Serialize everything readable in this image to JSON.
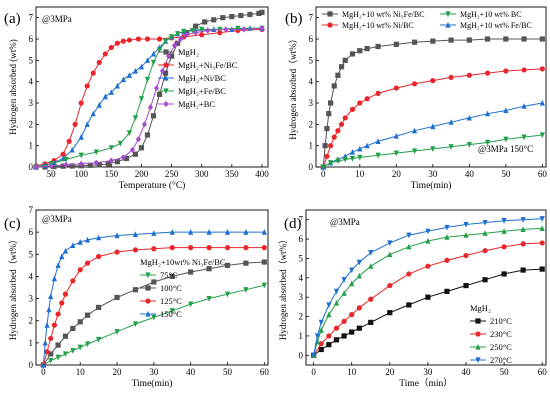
{
  "chart_data": [
    {
      "panel": "(a)",
      "type": "line",
      "annotation": "@3MPa",
      "xlabel": "Temperature (°C)",
      "ylabel": "Hydrogen absorbed (wt%)",
      "xlim": [
        25,
        410
      ],
      "ylim": [
        0,
        7.5
      ],
      "xticks": [
        50,
        100,
        150,
        200,
        250,
        300,
        350,
        400
      ],
      "yticks": [
        0,
        1,
        2,
        3,
        4,
        5,
        6,
        7
      ],
      "legend": {
        "placement": "center-right",
        "entries": [
          {
            "name": "MgH₂",
            "color": "#555555",
            "marker": "square"
          },
          {
            "name": "MgH₂+Ni₃Fe/BC",
            "color": "#e8262b",
            "marker": "circle"
          },
          {
            "name": "MgH₂+Ni/BC",
            "color": "#1f6fd1",
            "marker": "triangle"
          },
          {
            "name": "MgH₂+Fe/BC",
            "color": "#23a04a",
            "marker": "tri-down"
          },
          {
            "name": "MgH₂+BC",
            "color": "#a44ccc",
            "marker": "diamond"
          }
        ]
      },
      "series": [
        {
          "name": "MgH₂",
          "color": "#555555",
          "marker": "square",
          "x": [
            25,
            40,
            55,
            70,
            85,
            100,
            115,
            130,
            145,
            160,
            175,
            190,
            200,
            210,
            220,
            230,
            240,
            250,
            260,
            275,
            290,
            305,
            320,
            335,
            350,
            365,
            380,
            395,
            400
          ],
          "y": [
            0.0,
            0.0,
            0.02,
            0.04,
            0.05,
            0.06,
            0.08,
            0.1,
            0.15,
            0.25,
            0.4,
            0.6,
            0.9,
            1.5,
            2.4,
            3.4,
            4.4,
            5.2,
            5.8,
            6.3,
            6.6,
            6.8,
            6.9,
            7.0,
            7.05,
            7.1,
            7.15,
            7.2,
            7.25
          ]
        },
        {
          "name": "MgH₂+Ni₃Fe/BC",
          "color": "#e8262b",
          "marker": "circle",
          "x": [
            25,
            40,
            55,
            70,
            80,
            90,
            100,
            110,
            120,
            130,
            140,
            150,
            160,
            170,
            180,
            195,
            210,
            230,
            250,
            270,
            300,
            330,
            360,
            400
          ],
          "y": [
            0.05,
            0.15,
            0.3,
            0.6,
            1.2,
            2.0,
            3.0,
            3.8,
            4.4,
            4.9,
            5.3,
            5.6,
            5.8,
            5.9,
            5.95,
            6.0,
            6.0,
            6.0,
            6.05,
            6.1,
            6.2,
            6.3,
            6.4,
            6.45
          ]
        },
        {
          "name": "MgH₂+Ni/BC",
          "color": "#1f6fd1",
          "marker": "triangle",
          "x": [
            25,
            40,
            55,
            70,
            85,
            100,
            110,
            120,
            130,
            140,
            150,
            160,
            170,
            180,
            190,
            200,
            210,
            220,
            230,
            240,
            250,
            260,
            270,
            290,
            320,
            350,
            380,
            400
          ],
          "y": [
            0.0,
            0.1,
            0.2,
            0.4,
            0.8,
            1.4,
            2.0,
            2.5,
            2.9,
            3.3,
            3.5,
            3.8,
            4.1,
            4.3,
            4.5,
            4.7,
            5.0,
            5.3,
            5.6,
            5.9,
            6.1,
            6.25,
            6.35,
            6.4,
            6.45,
            6.45,
            6.5,
            6.5
          ]
        },
        {
          "name": "MgH₂+Fe/BC",
          "color": "#23a04a",
          "marker": "tri-down",
          "x": [
            25,
            50,
            75,
            100,
            125,
            150,
            165,
            180,
            190,
            200,
            210,
            220,
            230,
            240,
            250,
            260,
            270,
            285,
            300,
            330,
            360,
            400
          ],
          "y": [
            0.0,
            0.15,
            0.35,
            0.55,
            0.7,
            0.9,
            1.1,
            1.6,
            2.3,
            3.2,
            4.1,
            4.9,
            5.5,
            5.9,
            6.1,
            6.25,
            6.35,
            6.4,
            6.45,
            6.45,
            6.5,
            6.5
          ]
        },
        {
          "name": "MgH₂+BC",
          "color": "#a44ccc",
          "marker": "diamond",
          "x": [
            25,
            50,
            75,
            100,
            125,
            150,
            170,
            185,
            195,
            205,
            215,
            225,
            235,
            245,
            255,
            265,
            275,
            290,
            310,
            340,
            370,
            400
          ],
          "y": [
            0.0,
            0.05,
            0.1,
            0.15,
            0.2,
            0.3,
            0.45,
            0.8,
            1.3,
            2.0,
            2.8,
            3.7,
            4.5,
            5.2,
            5.7,
            6.0,
            6.2,
            6.3,
            6.4,
            6.45,
            6.45,
            6.5
          ]
        }
      ]
    },
    {
      "panel": "(b)",
      "type": "line",
      "annotation": "@3MPa  150°C",
      "xlabel": "Time(min)",
      "ylabel": "Hydrogen absorbed（wt%）",
      "xlim": [
        -2,
        61
      ],
      "ylim": [
        0,
        7.5
      ],
      "xticks": [
        0,
        10,
        20,
        30,
        40,
        50,
        60
      ],
      "yticks": [
        0,
        1,
        2,
        3,
        4,
        5,
        6,
        7
      ],
      "legend": {
        "placement": "top",
        "entries": [
          {
            "name": "MgH₂+10 wt% Ni₃Fe/BC",
            "color": "#555555",
            "marker": "square"
          },
          {
            "name": "MgH₂+10 wt% BC",
            "color": "#23a04a",
            "marker": "tri-down"
          },
          {
            "name": "MgH₂+10 wt% Ni/BC",
            "color": "#e8262b",
            "marker": "circle"
          },
          {
            "name": "MgH₂+10 wt% Fe/BC",
            "color": "#1f6fd1",
            "marker": "triangle"
          }
        ]
      },
      "series": [
        {
          "name": "MgH₂+10 wt% Ni₃Fe/BC",
          "color": "#555555",
          "marker": "square",
          "x": [
            0,
            0.5,
            1,
            1.5,
            2,
            3,
            4,
            5,
            6,
            8,
            10,
            12,
            15,
            20,
            25,
            30,
            35,
            40,
            45,
            50,
            55,
            60
          ],
          "y": [
            0,
            1.0,
            1.8,
            2.5,
            3.0,
            3.8,
            4.3,
            4.7,
            5.0,
            5.3,
            5.45,
            5.55,
            5.65,
            5.75,
            5.85,
            5.9,
            5.95,
            5.95,
            6.0,
            6.0,
            6.0,
            6.0
          ]
        },
        {
          "name": "MgH₂+10 wt% Ni/BC",
          "color": "#e8262b",
          "marker": "circle",
          "x": [
            0,
            1,
            2,
            3,
            4,
            5,
            6,
            8,
            10,
            12,
            15,
            20,
            25,
            30,
            35,
            40,
            45,
            50,
            55,
            60
          ],
          "y": [
            0,
            0.5,
            1.0,
            1.4,
            1.7,
            2.0,
            2.3,
            2.7,
            3.0,
            3.2,
            3.45,
            3.7,
            3.9,
            4.05,
            4.2,
            4.3,
            4.4,
            4.5,
            4.55,
            4.6
          ]
        },
        {
          "name": "MgH₂+10 wt% Fe/BC",
          "color": "#1f6fd1",
          "marker": "triangle",
          "x": [
            0,
            2,
            4,
            6,
            8,
            10,
            12,
            15,
            20,
            25,
            30,
            35,
            40,
            45,
            50,
            55,
            60
          ],
          "y": [
            0,
            0.2,
            0.35,
            0.5,
            0.7,
            0.85,
            1.0,
            1.2,
            1.45,
            1.7,
            1.9,
            2.1,
            2.3,
            2.5,
            2.65,
            2.85,
            3.0
          ]
        },
        {
          "name": "MgH₂+10 wt% BC",
          "color": "#23a04a",
          "marker": "tri-down",
          "x": [
            0,
            2,
            4,
            6,
            8,
            10,
            15,
            20,
            25,
            30,
            35,
            40,
            45,
            50,
            55,
            60
          ],
          "y": [
            0,
            0.2,
            0.28,
            0.35,
            0.4,
            0.45,
            0.55,
            0.65,
            0.75,
            0.85,
            0.95,
            1.05,
            1.15,
            1.3,
            1.4,
            1.5
          ]
        }
      ]
    },
    {
      "panel": "(c)",
      "type": "line",
      "annotation": "@3MPa",
      "xlabel": "Time(min)",
      "ylabel": "Hydrogen absorbed（wt%）",
      "xlim": [
        -2,
        61
      ],
      "ylim": [
        0,
        7
      ],
      "xticks": [
        0,
        10,
        20,
        30,
        40,
        50,
        60
      ],
      "yticks": [
        0,
        1,
        2,
        3,
        4,
        5,
        6,
        7
      ],
      "legend": {
        "placement": "bottom-right",
        "title": "MgH₂+10wt% Ni₃Fe/BC",
        "entries": [
          {
            "name": "75°C",
            "color": "#23a04a",
            "marker": "tri-down"
          },
          {
            "name": "100°C",
            "color": "#555555",
            "marker": "square"
          },
          {
            "name": "125°C",
            "color": "#e8262b",
            "marker": "circle"
          },
          {
            "name": "150°C",
            "color": "#1f6fd1",
            "marker": "triangle"
          }
        ]
      },
      "series": [
        {
          "name": "75°C",
          "color": "#23a04a",
          "marker": "tri-down",
          "x": [
            0,
            2,
            4,
            6,
            8,
            10,
            12,
            15,
            20,
            25,
            30,
            35,
            40,
            45,
            50,
            55,
            60
          ],
          "y": [
            0,
            0.2,
            0.35,
            0.5,
            0.65,
            0.8,
            0.95,
            1.15,
            1.5,
            1.85,
            2.15,
            2.45,
            2.75,
            3.0,
            3.2,
            3.4,
            3.6
          ]
        },
        {
          "name": "100°C",
          "color": "#555555",
          "marker": "square",
          "x": [
            0,
            2,
            4,
            6,
            8,
            10,
            12,
            15,
            20,
            25,
            30,
            35,
            40,
            45,
            50,
            55,
            60
          ],
          "y": [
            0,
            0.5,
            0.9,
            1.3,
            1.65,
            1.95,
            2.25,
            2.6,
            3.05,
            3.4,
            3.75,
            4.0,
            4.2,
            4.35,
            4.5,
            4.6,
            4.65
          ]
        },
        {
          "name": "125°C",
          "color": "#e8262b",
          "marker": "circle",
          "x": [
            0,
            1,
            2,
            3,
            4,
            5,
            6,
            8,
            10,
            12,
            15,
            20,
            25,
            30,
            35,
            40,
            45,
            50,
            55,
            60
          ],
          "y": [
            0,
            0.6,
            1.2,
            1.8,
            2.3,
            2.8,
            3.2,
            3.8,
            4.3,
            4.6,
            4.9,
            5.1,
            5.2,
            5.25,
            5.3,
            5.3,
            5.3,
            5.3,
            5.3,
            5.3
          ]
        },
        {
          "name": "150°C",
          "color": "#1f6fd1",
          "marker": "triangle",
          "x": [
            0,
            0.5,
            1,
            1.5,
            2,
            3,
            4,
            5,
            6,
            8,
            10,
            12,
            15,
            20,
            25,
            30,
            35,
            40,
            45,
            50,
            55,
            60
          ],
          "y": [
            0,
            1.0,
            1.8,
            2.5,
            3.1,
            3.9,
            4.5,
            4.9,
            5.15,
            5.4,
            5.55,
            5.65,
            5.75,
            5.85,
            5.9,
            5.95,
            6.0,
            6.0,
            6.0,
            6.0,
            6.0,
            6.0
          ]
        }
      ]
    },
    {
      "panel": "(d)",
      "type": "line",
      "annotation": "@3MPa",
      "xlabel": "Time（min）",
      "ylabel": "Hydrogen absorbed（wt%）",
      "xlim": [
        -2,
        61
      ],
      "ylim": [
        -0.5,
        7.5
      ],
      "xticks": [
        0,
        10,
        20,
        30,
        40,
        50,
        60
      ],
      "yticks": [
        0,
        1,
        2,
        3,
        4,
        5,
        6,
        7
      ],
      "legend": {
        "placement": "bottom-right",
        "title": "MgH₂",
        "entries": [
          {
            "name": "210°C",
            "color": "#111111",
            "marker": "square"
          },
          {
            "name": "230°C",
            "color": "#e8262b",
            "marker": "circle"
          },
          {
            "name": "250°C",
            "color": "#23a04a",
            "marker": "triangle"
          },
          {
            "name": "270°C",
            "color": "#1f6fd1",
            "marker": "tri-down"
          }
        ]
      },
      "series": [
        {
          "name": "210°C",
          "color": "#111111",
          "marker": "square",
          "x": [
            0,
            2,
            4,
            6,
            8,
            10,
            12,
            15,
            20,
            25,
            30,
            35,
            40,
            45,
            50,
            55,
            60
          ],
          "y": [
            0,
            0.3,
            0.55,
            0.8,
            1.0,
            1.2,
            1.4,
            1.7,
            2.2,
            2.6,
            3.0,
            3.3,
            3.6,
            3.9,
            4.2,
            4.4,
            4.45
          ]
        },
        {
          "name": "230°C",
          "color": "#e8262b",
          "marker": "circle",
          "x": [
            0,
            2,
            4,
            6,
            8,
            10,
            12,
            15,
            20,
            25,
            30,
            35,
            40,
            45,
            50,
            55,
            60
          ],
          "y": [
            0,
            0.6,
            1.0,
            1.4,
            1.75,
            2.1,
            2.45,
            2.9,
            3.6,
            4.2,
            4.6,
            4.9,
            5.15,
            5.4,
            5.6,
            5.75,
            5.8
          ]
        },
        {
          "name": "250°C",
          "color": "#23a04a",
          "marker": "triangle",
          "x": [
            0,
            1,
            2,
            4,
            6,
            8,
            10,
            12,
            15,
            20,
            25,
            30,
            35,
            40,
            45,
            50,
            55,
            60
          ],
          "y": [
            0,
            0.7,
            1.3,
            2.1,
            2.7,
            3.2,
            3.7,
            4.1,
            4.6,
            5.2,
            5.6,
            5.9,
            6.1,
            6.2,
            6.3,
            6.4,
            6.5,
            6.55
          ]
        },
        {
          "name": "270°C",
          "color": "#1f6fd1",
          "marker": "tri-down",
          "x": [
            0,
            1,
            2,
            4,
            6,
            8,
            10,
            12,
            15,
            20,
            25,
            30,
            35,
            40,
            45,
            50,
            55,
            60
          ],
          "y": [
            0,
            1.0,
            1.7,
            2.6,
            3.3,
            3.9,
            4.4,
            4.8,
            5.3,
            5.8,
            6.2,
            6.4,
            6.6,
            6.75,
            6.85,
            6.95,
            7.0,
            7.05
          ]
        }
      ]
    }
  ]
}
